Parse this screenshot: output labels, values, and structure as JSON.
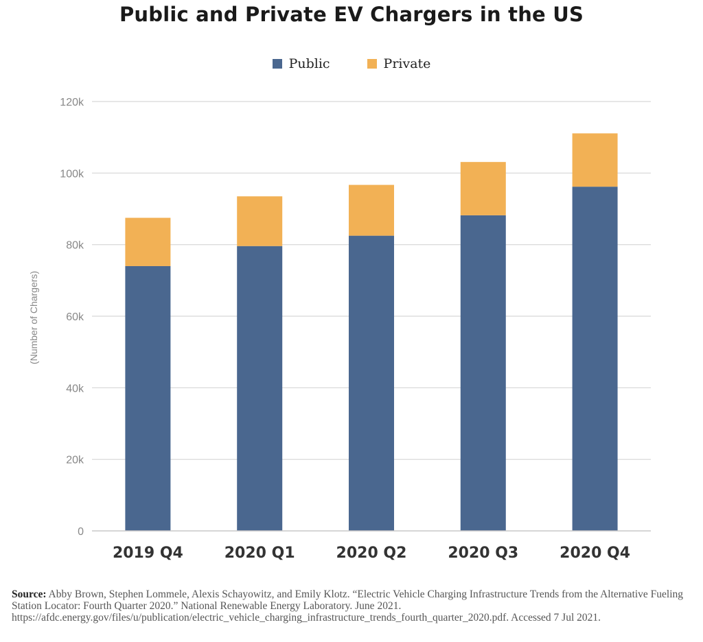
{
  "chart_data": {
    "type": "bar",
    "stacked": true,
    "title": "Public and Private EV Chargers in the US",
    "ylabel": "(Number of Chargers)",
    "xlabel": "",
    "categories": [
      "2019 Q4",
      "2020 Q1",
      "2020 Q2",
      "2020 Q3",
      "2020 Q4"
    ],
    "series": [
      {
        "name": "Public",
        "color": "#4a678f",
        "values": [
          74000,
          79600,
          82500,
          88200,
          96200
        ]
      },
      {
        "name": "Private",
        "color": "#f2b155",
        "values": [
          13500,
          13900,
          14200,
          14900,
          14900
        ]
      }
    ],
    "ylim": [
      0,
      120000
    ],
    "yticks": [
      0,
      20000,
      40000,
      60000,
      80000,
      100000,
      120000
    ],
    "ytick_labels": [
      "0",
      "20k",
      "40k",
      "60k",
      "80k",
      "100k",
      "120k"
    ],
    "grid": true,
    "legend_position": "top-center"
  },
  "source": {
    "label": "Source:",
    "text": "Abby Brown, Stephen Lommele, Alexis Schayowitz, and Emily Klotz. “Electric Vehicle Charging Infrastructure Trends from the Alternative Fueling Station Locator: Fourth Quarter 2020.” National Renewable Energy Laboratory. June 2021. https://afdc.energy.gov/files/u/publication/electric_vehicle_charging_infrastructure_trends_fourth_quarter_2020.pdf. Accessed 7 Jul 2021."
  }
}
